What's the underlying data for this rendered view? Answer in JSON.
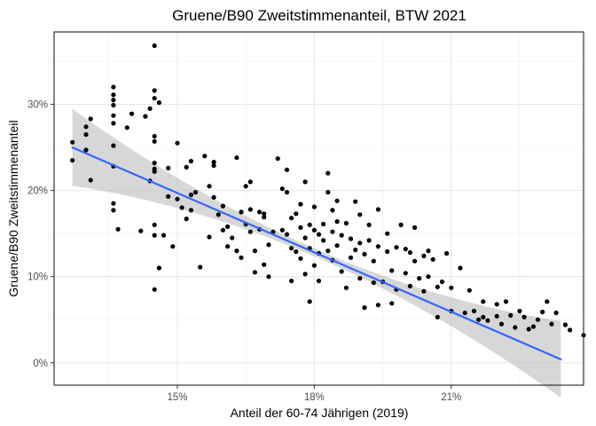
{
  "chart_data": {
    "type": "scatter",
    "title": "Gruene/B90 Zweitstimmenanteil, BTW 2021",
    "xlabel": "Anteil der 60-74 Jährigen (2019)",
    "ylabel": "Gruene/B90 Zweitstimmenanteil",
    "xlim": [
      12.3,
      23.9
    ],
    "ylim": [
      -2.6,
      38.4
    ],
    "x_ticks": [
      15,
      18,
      21
    ],
    "x_tick_labels": [
      "15%",
      "18%",
      "21%"
    ],
    "y_ticks": [
      0,
      10,
      20,
      30
    ],
    "y_tick_labels": [
      "0%",
      "10%",
      "20%",
      "30%"
    ],
    "grid": true,
    "legend": "none",
    "point_color": "#000000",
    "trend": {
      "method": "linear regression with confidence band",
      "color": "#3366ff",
      "band_color": "#bdbdbd",
      "x": [
        12.7,
        23.4
      ],
      "y": [
        25.0,
        0.4
      ]
    },
    "points": [
      [
        12.7,
        25.6
      ],
      [
        12.7,
        23.5
      ],
      [
        13.0,
        26.5
      ],
      [
        13.0,
        27.4
      ],
      [
        13.0,
        24.7
      ],
      [
        13.1,
        28.3
      ],
      [
        13.1,
        21.2
      ],
      [
        13.6,
        32.0
      ],
      [
        13.6,
        31.1
      ],
      [
        13.6,
        30.5
      ],
      [
        13.6,
        29.9
      ],
      [
        13.6,
        28.7
      ],
      [
        13.6,
        27.8
      ],
      [
        13.6,
        25.2
      ],
      [
        13.6,
        22.8
      ],
      [
        13.6,
        18.5
      ],
      [
        13.6,
        17.7
      ],
      [
        13.7,
        15.5
      ],
      [
        13.9,
        27.3
      ],
      [
        14.0,
        28.9
      ],
      [
        14.2,
        15.3
      ],
      [
        14.3,
        28.6
      ],
      [
        14.4,
        29.5
      ],
      [
        14.4,
        21.1
      ],
      [
        14.5,
        36.8
      ],
      [
        14.5,
        31.6
      ],
      [
        14.5,
        30.7
      ],
      [
        14.5,
        26.3
      ],
      [
        14.5,
        25.7
      ],
      [
        14.5,
        23.2
      ],
      [
        14.5,
        22.5
      ],
      [
        14.5,
        22.2
      ],
      [
        14.5,
        16.0
      ],
      [
        14.5,
        14.8
      ],
      [
        14.5,
        8.5
      ],
      [
        14.6,
        30.2
      ],
      [
        14.6,
        11.0
      ],
      [
        14.7,
        14.8
      ],
      [
        14.8,
        19.3
      ],
      [
        14.9,
        13.5
      ],
      [
        15.0,
        25.5
      ],
      [
        14.8,
        22.6
      ],
      [
        15.0,
        19.0
      ],
      [
        15.1,
        18.0
      ],
      [
        15.2,
        22.7
      ],
      [
        15.2,
        16.7
      ],
      [
        15.3,
        23.4
      ],
      [
        15.3,
        19.5
      ],
      [
        15.3,
        17.7
      ],
      [
        15.4,
        19.8
      ],
      [
        15.5,
        11.1
      ],
      [
        15.6,
        24.0
      ],
      [
        15.7,
        20.5
      ],
      [
        15.7,
        14.6
      ],
      [
        15.8,
        23.3
      ],
      [
        15.8,
        22.9
      ],
      [
        15.8,
        19.2
      ],
      [
        15.9,
        17.2
      ],
      [
        16.0,
        18.2
      ],
      [
        16.0,
        15.4
      ],
      [
        16.1,
        13.5
      ],
      [
        16.1,
        15.8
      ],
      [
        16.2,
        14.5
      ],
      [
        16.3,
        23.8
      ],
      [
        16.3,
        13.0
      ],
      [
        16.4,
        17.5
      ],
      [
        16.4,
        12.2
      ],
      [
        16.5,
        20.5
      ],
      [
        16.5,
        16.1
      ],
      [
        16.6,
        21.0
      ],
      [
        16.6,
        17.8
      ],
      [
        16.6,
        15.2
      ],
      [
        16.7,
        10.5
      ],
      [
        16.7,
        13.0
      ],
      [
        16.8,
        17.5
      ],
      [
        16.8,
        15.5
      ],
      [
        16.9,
        16.9
      ],
      [
        16.9,
        17.3
      ],
      [
        16.9,
        11.4
      ],
      [
        17.0,
        13.7
      ],
      [
        17.0,
        10.0
      ],
      [
        17.1,
        15.2
      ],
      [
        17.2,
        23.7
      ],
      [
        17.3,
        20.2
      ],
      [
        17.3,
        15.4
      ],
      [
        17.4,
        22.4
      ],
      [
        17.4,
        19.8
      ],
      [
        17.4,
        14.9
      ],
      [
        17.5,
        16.8
      ],
      [
        17.5,
        13.3
      ],
      [
        17.5,
        9.5
      ],
      [
        17.6,
        17.3
      ],
      [
        17.6,
        12.9
      ],
      [
        17.7,
        18.4
      ],
      [
        17.7,
        15.7
      ],
      [
        17.7,
        12.1
      ],
      [
        17.8,
        21.0
      ],
      [
        17.8,
        14.5
      ],
      [
        17.8,
        10.3
      ],
      [
        17.9,
        16.0
      ],
      [
        17.9,
        13.3
      ],
      [
        17.9,
        7.1
      ],
      [
        18.0,
        18.1
      ],
      [
        18.0,
        15.4
      ],
      [
        18.0,
        11.3
      ],
      [
        18.1,
        14.9
      ],
      [
        18.1,
        12.7
      ],
      [
        18.1,
        9.5
      ],
      [
        18.2,
        16.1
      ],
      [
        18.2,
        14.2
      ],
      [
        18.3,
        19.8
      ],
      [
        18.3,
        13.0
      ],
      [
        18.3,
        22.0
      ],
      [
        18.4,
        17.7
      ],
      [
        18.4,
        15.2
      ],
      [
        18.4,
        11.9
      ],
      [
        18.5,
        18.8
      ],
      [
        18.5,
        16.4
      ],
      [
        18.5,
        13.6
      ],
      [
        18.6,
        10.6
      ],
      [
        18.6,
        14.8
      ],
      [
        18.7,
        16.2
      ],
      [
        18.7,
        8.7
      ],
      [
        18.8,
        14.4
      ],
      [
        18.8,
        12.2
      ],
      [
        18.9,
        13.1
      ],
      [
        18.9,
        18.7
      ],
      [
        19.0,
        17.2
      ],
      [
        19.0,
        13.9
      ],
      [
        19.0,
        9.8
      ],
      [
        19.1,
        12.6
      ],
      [
        19.1,
        6.4
      ],
      [
        19.2,
        16.0
      ],
      [
        19.2,
        14.2
      ],
      [
        19.3,
        11.8
      ],
      [
        19.3,
        9.3
      ],
      [
        19.4,
        17.8
      ],
      [
        19.4,
        13.5
      ],
      [
        19.4,
        6.7
      ],
      [
        19.5,
        9.4
      ],
      [
        19.6,
        12.9
      ],
      [
        19.6,
        15.0
      ],
      [
        19.7,
        10.7
      ],
      [
        19.7,
        6.9
      ],
      [
        19.8,
        13.4
      ],
      [
        19.8,
        8.5
      ],
      [
        19.9,
        16.0
      ],
      [
        20.0,
        13.2
      ],
      [
        20.0,
        10.4
      ],
      [
        20.1,
        12.8
      ],
      [
        20.1,
        8.9
      ],
      [
        20.2,
        15.7
      ],
      [
        20.2,
        11.8
      ],
      [
        20.3,
        9.8
      ],
      [
        20.4,
        12.4
      ],
      [
        20.4,
        8.3
      ],
      [
        20.5,
        10.0
      ],
      [
        20.5,
        13.0
      ],
      [
        20.6,
        12.0
      ],
      [
        20.7,
        8.8
      ],
      [
        20.7,
        5.3
      ],
      [
        20.8,
        9.4
      ],
      [
        20.9,
        12.7
      ],
      [
        21.0,
        8.7
      ],
      [
        21.0,
        6.0
      ],
      [
        21.2,
        11.0
      ],
      [
        21.3,
        5.8
      ],
      [
        21.4,
        8.4
      ],
      [
        21.5,
        6.0
      ],
      [
        21.6,
        5.0
      ],
      [
        21.7,
        7.1
      ],
      [
        21.7,
        5.3
      ],
      [
        21.8,
        4.9
      ],
      [
        22.0,
        6.8
      ],
      [
        22.0,
        5.4
      ],
      [
        22.1,
        4.5
      ],
      [
        22.2,
        7.1
      ],
      [
        22.3,
        5.5
      ],
      [
        22.4,
        4.1
      ],
      [
        22.5,
        6.0
      ],
      [
        22.6,
        5.3
      ],
      [
        22.7,
        3.9
      ],
      [
        22.8,
        4.2
      ],
      [
        22.9,
        5.0
      ],
      [
        23.0,
        5.9
      ],
      [
        23.1,
        7.1
      ],
      [
        23.2,
        4.5
      ],
      [
        23.3,
        5.8
      ],
      [
        23.5,
        4.4
      ],
      [
        23.6,
        3.8
      ],
      [
        23.9,
        3.2
      ]
    ]
  }
}
